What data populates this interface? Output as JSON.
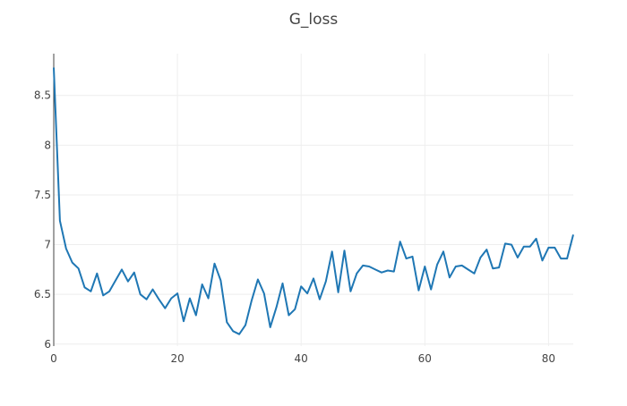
{
  "chart_data": {
    "type": "line",
    "title": "G_loss",
    "xlabel": "",
    "ylabel": "",
    "xlim": [
      0,
      84
    ],
    "ylim": [
      5.98,
      8.92
    ],
    "xticks": [
      0,
      20,
      40,
      60,
      80
    ],
    "yticks": [
      6,
      6.5,
      7,
      7.5,
      8,
      8.5
    ],
    "xtick_labels": [
      "0",
      "20",
      "40",
      "60",
      "80"
    ],
    "ytick_labels": [
      "6",
      "6.5",
      "7",
      "7.5",
      "8",
      "8.5"
    ],
    "grid": true,
    "legend": "none",
    "series": [
      {
        "color": "#1f77b4",
        "x": [
          0,
          1,
          2,
          3,
          4,
          5,
          6,
          7,
          8,
          9,
          10,
          11,
          12,
          13,
          14,
          15,
          16,
          17,
          18,
          19,
          20,
          21,
          22,
          23,
          24,
          25,
          26,
          27,
          28,
          29,
          30,
          31,
          32,
          33,
          34,
          35,
          36,
          37,
          38,
          39,
          40,
          41,
          42,
          43,
          44,
          45,
          46,
          47,
          48,
          49,
          50,
          51,
          52,
          53,
          54,
          55,
          56,
          57,
          58,
          59,
          60,
          61,
          62,
          63,
          64,
          65,
          66,
          67,
          68,
          69,
          70,
          71,
          72,
          73,
          74,
          75,
          76,
          77,
          78,
          79,
          80,
          81,
          82,
          83,
          84
        ],
        "y": [
          8.78,
          7.24,
          6.96,
          6.82,
          6.76,
          6.57,
          6.53,
          6.71,
          6.49,
          6.53,
          6.64,
          6.75,
          6.63,
          6.72,
          6.5,
          6.45,
          6.55,
          6.45,
          6.36,
          6.46,
          6.51,
          6.23,
          6.46,
          6.29,
          6.6,
          6.46,
          6.81,
          6.64,
          6.22,
          6.13,
          6.1,
          6.19,
          6.44,
          6.65,
          6.51,
          6.17,
          6.37,
          6.61,
          6.29,
          6.35,
          6.58,
          6.51,
          6.66,
          6.45,
          6.63,
          6.93,
          6.52,
          6.94,
          6.53,
          6.71,
          6.79,
          6.78,
          6.75,
          6.72,
          6.74,
          6.73,
          7.03,
          6.86,
          6.88,
          6.54,
          6.78,
          6.55,
          6.8,
          6.93,
          6.67,
          6.78,
          6.79,
          6.75,
          6.71,
          6.87,
          6.95,
          6.76,
          6.77,
          7.01,
          7.0,
          6.87,
          6.98,
          6.98,
          7.06,
          6.84,
          6.97,
          6.97,
          6.86,
          6.86,
          7.1
        ]
      }
    ]
  }
}
